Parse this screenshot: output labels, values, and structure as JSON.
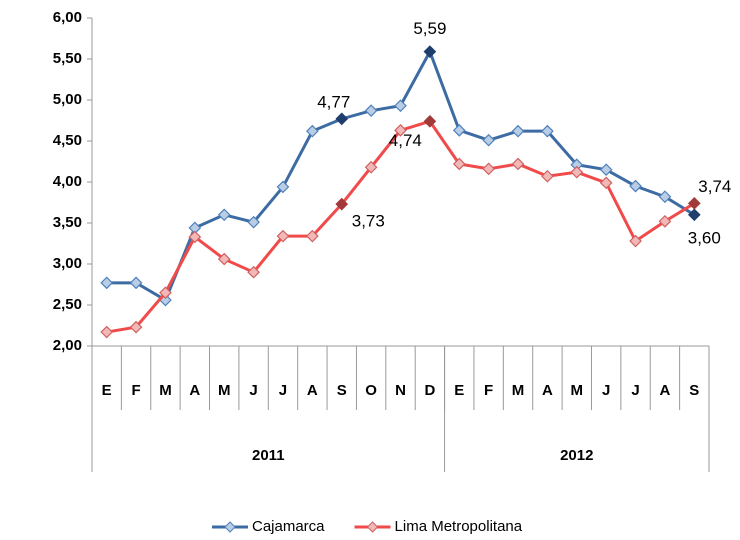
{
  "chart_data": {
    "type": "line",
    "categories": [
      "E",
      "F",
      "M",
      "A",
      "M",
      "J",
      "J",
      "A",
      "S",
      "O",
      "N",
      "D",
      "E",
      "F",
      "M",
      "A",
      "M",
      "J",
      "J",
      "A",
      "S"
    ],
    "groups": [
      {
        "label": "2011",
        "size": 12
      },
      {
        "label": "2012",
        "size": 9
      }
    ],
    "series": [
      {
        "name": "Cajamarca",
        "color": "#3d6ba3",
        "marker_fill": "#b9cde5",
        "marker_stroke": "#4f81bd",
        "highlight_color": "#1f3e6e",
        "values": [
          2.77,
          2.77,
          2.56,
          3.44,
          3.6,
          3.51,
          3.94,
          4.62,
          4.77,
          4.87,
          4.93,
          5.59,
          4.63,
          4.51,
          4.62,
          4.62,
          4.21,
          4.15,
          3.95,
          3.82,
          3.6
        ],
        "value_labels": [
          null,
          null,
          null,
          null,
          null,
          null,
          null,
          null,
          "4,77",
          null,
          null,
          "5,59",
          null,
          null,
          null,
          null,
          null,
          null,
          null,
          null,
          "3,60"
        ]
      },
      {
        "name": "Lima Metropolitana",
        "color": "#f04a4a",
        "marker_fill": "#f2b8b8",
        "marker_stroke": "#d06060",
        "highlight_color": "#a33a3a",
        "values": [
          2.17,
          2.23,
          2.65,
          3.33,
          3.06,
          2.9,
          3.34,
          3.34,
          3.73,
          4.18,
          4.63,
          4.74,
          4.22,
          4.16,
          4.22,
          4.07,
          4.12,
          3.99,
          3.28,
          3.52,
          3.74
        ],
        "value_labels": [
          null,
          null,
          null,
          null,
          null,
          null,
          null,
          null,
          "3,73",
          null,
          null,
          "4,74",
          null,
          null,
          null,
          null,
          null,
          null,
          null,
          null,
          "3,74"
        ]
      }
    ],
    "ylim": [
      2,
      6
    ],
    "yticks": [
      {
        "value": 2,
        "label": "2,00"
      },
      {
        "value": 2.5,
        "label": "2,50"
      },
      {
        "value": 3,
        "label": "3,00"
      },
      {
        "value": 3.5,
        "label": "3,50"
      },
      {
        "value": 4,
        "label": "4,00"
      },
      {
        "value": 4.5,
        "label": "4,50"
      },
      {
        "value": 5,
        "label": "5,00"
      },
      {
        "value": 5.5,
        "label": "5,50"
      },
      {
        "value": 6,
        "label": "6,00"
      }
    ],
    "legend": "bottom"
  }
}
